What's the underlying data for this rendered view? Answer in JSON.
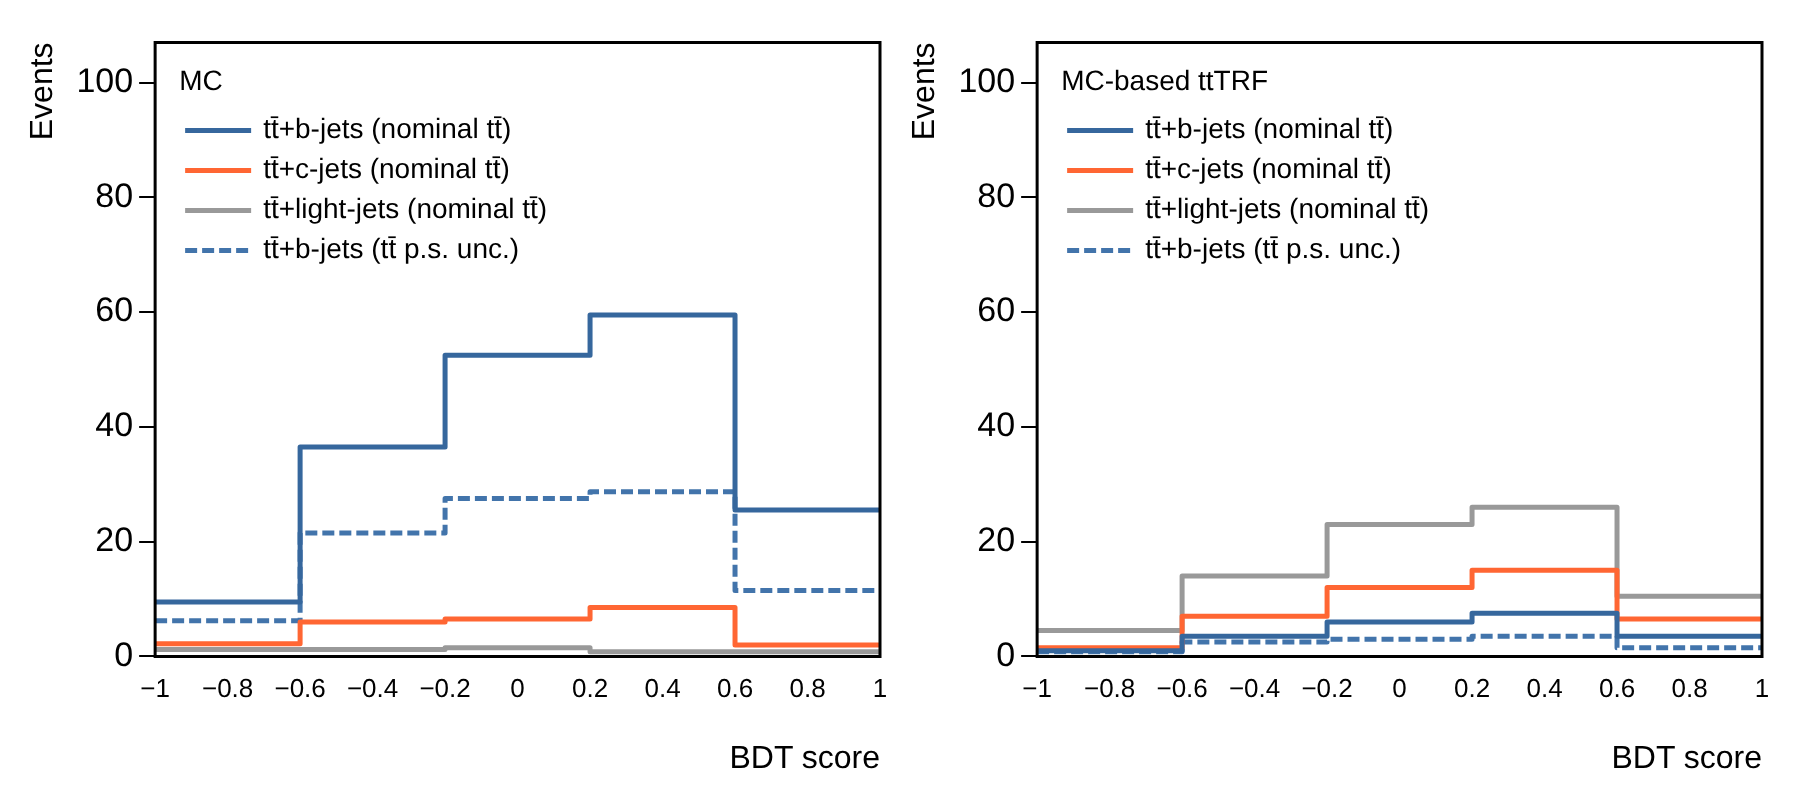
{
  "chart_data": [
    {
      "type": "histogram",
      "title": "MC",
      "xlabel": "BDT score",
      "ylabel": "Events",
      "bins": [
        -1,
        -0.6,
        -0.2,
        0.2,
        0.6,
        1
      ],
      "legend": "top left",
      "grid": false,
      "xlim": [
        -1,
        1
      ],
      "ylim": [
        0,
        107
      ],
      "xticks": [
        {
          "value": -1,
          "label": "−1"
        },
        {
          "value": -0.8,
          "label": "−0.8"
        },
        {
          "value": -0.6,
          "label": "−0.6"
        },
        {
          "value": -0.4,
          "label": "−0.4"
        },
        {
          "value": -0.2,
          "label": "−0.2"
        },
        0,
        0.2,
        0.4,
        0.6,
        0.8,
        1
      ],
      "yticks": [
        0,
        20,
        40,
        60,
        80,
        100
      ],
      "series": [
        {
          "name": "tt̄+b-jets (nominal tt̄)",
          "color": "#36679d",
          "values": [
            9.5,
            36.5,
            52.5,
            59.5,
            25.5
          ],
          "line_style": "solid"
        },
        {
          "name": "tt̄+c-jets (nominal tt̄)",
          "color": "#ff6633",
          "values": [
            2.2,
            6,
            6.5,
            8.5,
            2
          ],
          "line_style": "solid"
        },
        {
          "name": "tt̄+light-jets (nominal tt̄)",
          "color": "#999999",
          "values": [
            1.2,
            1.2,
            1.5,
            0.8,
            0.8
          ],
          "line_style": "solid"
        },
        {
          "name": "tt̄+b-jets (tt̄ p.s. unc.)",
          "color": "#4274ab",
          "values": [
            6.2,
            21.5,
            27.5,
            28.7,
            11.5
          ],
          "line_style": "dashed"
        }
      ]
    },
    {
      "type": "histogram",
      "title": "MC-based ttTRF",
      "xlabel": "BDT score",
      "ylabel": "Events",
      "bins": [
        -1,
        -0.6,
        -0.2,
        0.2,
        0.6,
        1
      ],
      "legend": "top left",
      "grid": false,
      "xlim": [
        -1,
        1
      ],
      "ylim": [
        0,
        107
      ],
      "xticks": [
        {
          "value": -1,
          "label": "−1"
        },
        {
          "value": -0.8,
          "label": "−0.8"
        },
        {
          "value": -0.6,
          "label": "−0.6"
        },
        {
          "value": -0.4,
          "label": "−0.4"
        },
        {
          "value": -0.2,
          "label": "−0.2"
        },
        0,
        0.2,
        0.4,
        0.6,
        0.8,
        1
      ],
      "yticks": [
        0,
        20,
        40,
        60,
        80,
        100
      ],
      "series": [
        {
          "name": "tt̄+b-jets (nominal tt̄)",
          "color": "#36679d",
          "values": [
            1,
            3.5,
            6,
            7.5,
            3.5
          ],
          "line_style": "solid"
        },
        {
          "name": "tt̄+c-jets (nominal tt̄)",
          "color": "#ff6633",
          "values": [
            1.5,
            7,
            12,
            15,
            6.5
          ],
          "line_style": "solid"
        },
        {
          "name": "tt̄+light-jets (nominal tt̄)",
          "color": "#999999",
          "values": [
            4.5,
            14,
            23,
            26,
            10.5
          ],
          "line_style": "solid"
        },
        {
          "name": "tt̄+b-jets (tt̄ p.s. unc.)",
          "color": "#4274ab",
          "values": [
            0.8,
            2.5,
            3,
            3.5,
            1.5
          ],
          "line_style": "dashed"
        }
      ]
    }
  ]
}
